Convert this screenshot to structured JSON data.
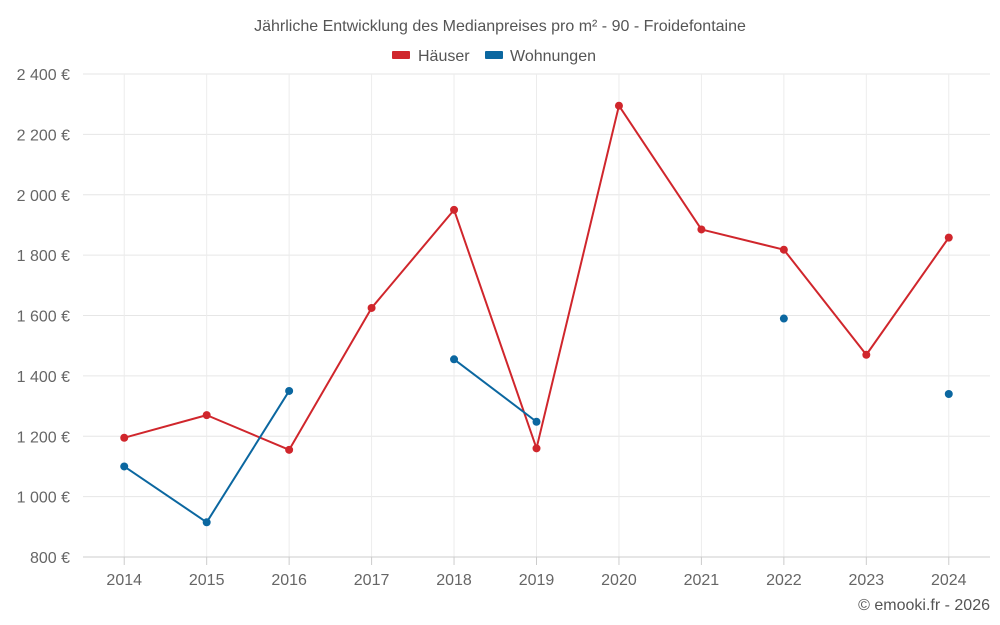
{
  "chart_data": {
    "type": "line",
    "title": "Jährliche Entwicklung des Medianpreises pro m² - 90 - Froidefontaine",
    "categories": [
      "2014",
      "2015",
      "2016",
      "2017",
      "2018",
      "2019",
      "2020",
      "2021",
      "2022",
      "2023",
      "2024"
    ],
    "ylim": [
      800,
      2400
    ],
    "yticks": [
      800,
      1000,
      1200,
      1400,
      1600,
      1800,
      2000,
      2200,
      2400
    ],
    "ytick_labels": [
      "800 €",
      "1 000 €",
      "1 200 €",
      "1 400 €",
      "1 600 €",
      "1 800 €",
      "2 000 €",
      "2 200 €",
      "2 400 €"
    ],
    "grid": true,
    "legend_position": "top-center",
    "series": [
      {
        "name": "Häuser",
        "color": "#d0262c",
        "values": [
          1195,
          1270,
          1155,
          1625,
          1950,
          1160,
          2295,
          1885,
          1818,
          1470,
          1858
        ]
      },
      {
        "name": "Wohnungen",
        "color": "#0b67a0",
        "values": [
          1100,
          915,
          1350,
          null,
          1455,
          1248,
          null,
          null,
          1590,
          null,
          1340
        ]
      }
    ],
    "credit": "© emooki.fr - 2026"
  }
}
